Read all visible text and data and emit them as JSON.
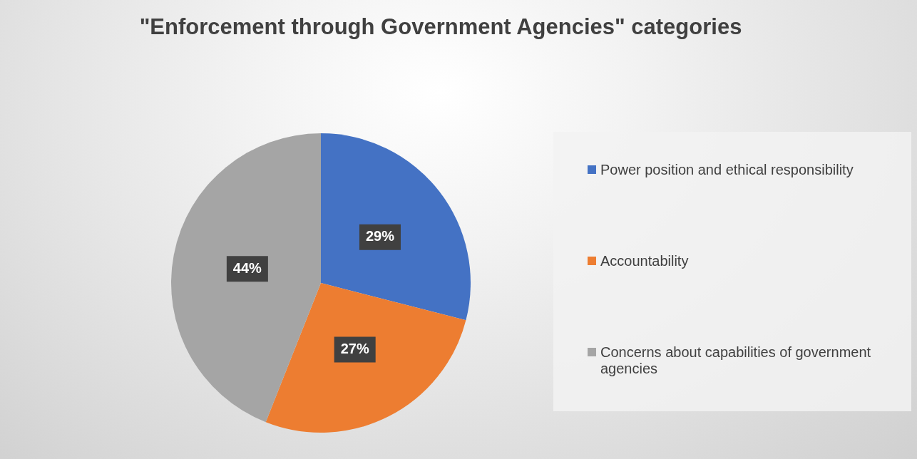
{
  "chart_data": {
    "type": "pie",
    "title": "\"Enforcement through Government Agencies\" categories",
    "categories": [
      "Power position and ethical responsibility",
      "Accountability",
      "Concerns about capabilities of government agencies"
    ],
    "values": [
      29,
      27,
      44
    ],
    "value_labels": [
      "29%",
      "27%",
      "44%"
    ],
    "colors": [
      "#4472c4",
      "#ed7d31",
      "#a5a5a5"
    ],
    "legend": "right"
  }
}
